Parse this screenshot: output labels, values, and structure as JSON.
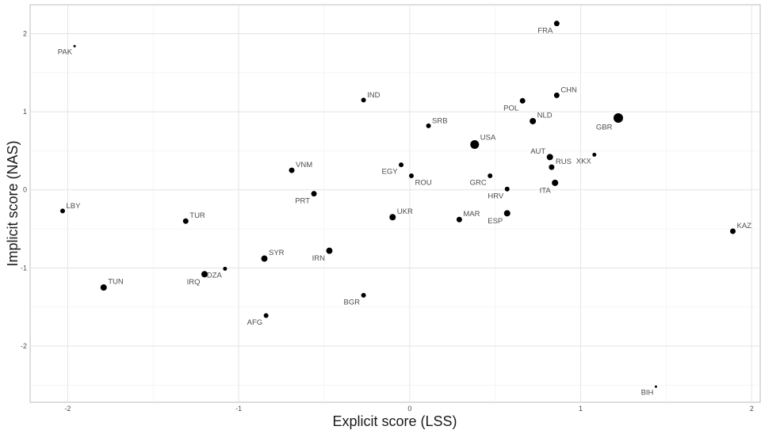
{
  "chart_data": {
    "type": "scatter",
    "xlabel": "Explicit score (LSS)",
    "ylabel": "Implicit score (NAS)",
    "xlim": [
      -2.22,
      2.05
    ],
    "ylim": [
      -2.72,
      2.37
    ],
    "x_ticks": [
      -2,
      -1,
      0,
      1,
      2
    ],
    "y_ticks": [
      -2,
      -1,
      0,
      1,
      2
    ],
    "x_tick_labels": [
      "-2",
      "-1",
      "0",
      "1",
      "2"
    ],
    "y_tick_labels": [
      "-2",
      "-1",
      "0",
      "1",
      "2"
    ],
    "grid": true,
    "points": [
      {
        "label": "FRA",
        "x": 0.86,
        "y": 2.13,
        "size": 3.5,
        "anchor": "bl"
      },
      {
        "label": "PAK",
        "x": -1.96,
        "y": 1.84,
        "size": 1.5,
        "anchor": "bl"
      },
      {
        "label": "CHN",
        "x": 0.86,
        "y": 1.21,
        "size": 3.5,
        "anchor": "tr"
      },
      {
        "label": "IND",
        "x": -0.27,
        "y": 1.15,
        "size": 3.0,
        "anchor": "tr"
      },
      {
        "label": "POL",
        "x": 0.66,
        "y": 1.14,
        "size": 3.5,
        "anchor": "bl"
      },
      {
        "label": "GBR",
        "x": 1.22,
        "y": 0.92,
        "size": 6.0,
        "anchor": "bl"
      },
      {
        "label": "NLD",
        "x": 0.72,
        "y": 0.88,
        "size": 4.0,
        "anchor": "tr"
      },
      {
        "label": "SRB",
        "x": 0.11,
        "y": 0.82,
        "size": 3.0,
        "anchor": "tr"
      },
      {
        "label": "USA",
        "x": 0.38,
        "y": 0.58,
        "size": 5.5,
        "anchor": "tr"
      },
      {
        "label": "AUT",
        "x": 0.82,
        "y": 0.42,
        "size": 4.0,
        "anchor": "tl"
      },
      {
        "label": "XKX",
        "x": 1.08,
        "y": 0.45,
        "size": 2.5,
        "anchor": "bl"
      },
      {
        "label": "RUS",
        "x": 0.83,
        "y": 0.29,
        "size": 3.5,
        "anchor": "tr"
      },
      {
        "label": "VNM",
        "x": -0.69,
        "y": 0.25,
        "size": 3.5,
        "anchor": "tr"
      },
      {
        "label": "EGY",
        "x": -0.05,
        "y": 0.32,
        "size": 3.0,
        "anchor": "bl"
      },
      {
        "label": "ROU",
        "x": 0.01,
        "y": 0.18,
        "size": 3.0,
        "anchor": "br"
      },
      {
        "label": "GRC",
        "x": 0.47,
        "y": 0.18,
        "size": 3.0,
        "anchor": "bl"
      },
      {
        "label": "ITA",
        "x": 0.85,
        "y": 0.09,
        "size": 4.0,
        "anchor": "bl"
      },
      {
        "label": "HRV",
        "x": 0.57,
        "y": 0.01,
        "size": 3.0,
        "anchor": "bl"
      },
      {
        "label": "PRT",
        "x": -0.56,
        "y": -0.05,
        "size": 3.5,
        "anchor": "bl"
      },
      {
        "label": "LBY",
        "x": -2.03,
        "y": -0.27,
        "size": 3.0,
        "anchor": "tr"
      },
      {
        "label": "UKR",
        "x": -0.1,
        "y": -0.35,
        "size": 4.0,
        "anchor": "tr"
      },
      {
        "label": "ESP",
        "x": 0.57,
        "y": -0.3,
        "size": 4.0,
        "anchor": "bl"
      },
      {
        "label": "MAR",
        "x": 0.29,
        "y": -0.38,
        "size": 3.5,
        "anchor": "tr"
      },
      {
        "label": "TUR",
        "x": -1.31,
        "y": -0.4,
        "size": 3.5,
        "anchor": "tr"
      },
      {
        "label": "KAZ",
        "x": 1.89,
        "y": -0.53,
        "size": 3.5,
        "anchor": "tr"
      },
      {
        "label": "IRN",
        "x": -0.47,
        "y": -0.78,
        "size": 4.0,
        "anchor": "bl"
      },
      {
        "label": "SYR",
        "x": -0.85,
        "y": -0.88,
        "size": 4.0,
        "anchor": "tr"
      },
      {
        "label": "DZA",
        "x": -1.08,
        "y": -1.01,
        "size": 2.5,
        "anchor": "bl"
      },
      {
        "label": "IRQ",
        "x": -1.2,
        "y": -1.08,
        "size": 4.0,
        "anchor": "bl"
      },
      {
        "label": "TUN",
        "x": -1.79,
        "y": -1.25,
        "size": 4.0,
        "anchor": "tr"
      },
      {
        "label": "BGR",
        "x": -0.27,
        "y": -1.35,
        "size": 3.0,
        "anchor": "bl"
      },
      {
        "label": "AFG",
        "x": -0.84,
        "y": -1.61,
        "size": 3.0,
        "anchor": "bl"
      },
      {
        "label": "BIH",
        "x": 1.44,
        "y": -2.52,
        "size": 1.5,
        "anchor": "bl"
      }
    ]
  }
}
